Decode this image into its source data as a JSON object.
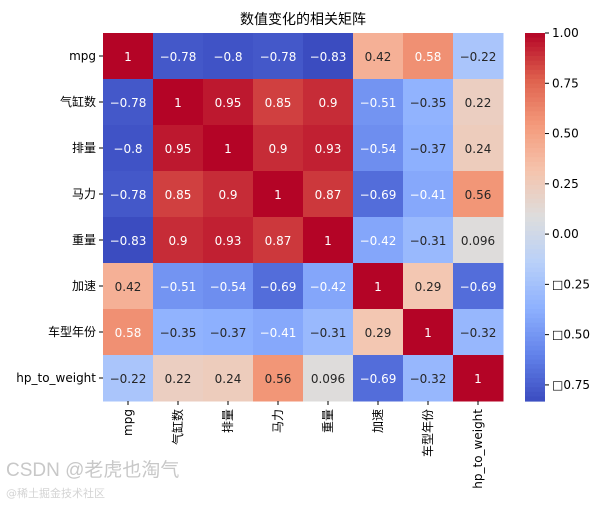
{
  "chart_data": {
    "type": "heatmap",
    "title": "数值变化的相关矩阵",
    "labels": [
      "mpg",
      "气缸数",
      "排量",
      "马力",
      "重量",
      "加速",
      "车型年份",
      "hp_to_weight"
    ],
    "matrix": [
      [
        1,
        -0.78,
        -0.8,
        -0.78,
        -0.83,
        0.42,
        0.58,
        -0.22
      ],
      [
        -0.78,
        1,
        0.95,
        0.85,
        0.9,
        -0.51,
        -0.35,
        0.22
      ],
      [
        -0.8,
        0.95,
        1,
        0.9,
        0.93,
        -0.54,
        -0.37,
        0.24
      ],
      [
        -0.78,
        0.85,
        0.9,
        1,
        0.87,
        -0.69,
        -0.41,
        0.56
      ],
      [
        -0.83,
        0.9,
        0.93,
        0.87,
        1,
        -0.42,
        -0.31,
        0.096
      ],
      [
        0.42,
        -0.51,
        -0.54,
        -0.69,
        -0.42,
        1,
        0.29,
        -0.69
      ],
      [
        0.58,
        -0.35,
        -0.37,
        -0.41,
        -0.31,
        0.29,
        1,
        -0.32
      ],
      [
        -0.22,
        0.22,
        0.24,
        0.56,
        0.096,
        -0.69,
        -0.32,
        1
      ]
    ],
    "annotations": [
      [
        "1",
        "−0.78",
        "−0.8",
        "−0.78",
        "−0.83",
        "0.42",
        "0.58",
        "−0.22"
      ],
      [
        "−0.78",
        "1",
        "0.95",
        "0.85",
        "0.9",
        "−0.51",
        "−0.35",
        "0.22"
      ],
      [
        "−0.8",
        "0.95",
        "1",
        "0.9",
        "0.93",
        "−0.54",
        "−0.37",
        "0.24"
      ],
      [
        "−0.78",
        "0.85",
        "0.9",
        "1",
        "0.87",
        "−0.69",
        "−0.41",
        "0.56"
      ],
      [
        "−0.83",
        "0.9",
        "0.93",
        "0.87",
        "1",
        "−0.42",
        "−0.31",
        "0.096"
      ],
      [
        "0.42",
        "−0.51",
        "−0.54",
        "−0.69",
        "−0.42",
        "1",
        "0.29",
        "−0.69"
      ],
      [
        "0.58",
        "−0.35",
        "−0.37",
        "−0.41",
        "−0.31",
        "0.29",
        "1",
        "−0.32"
      ],
      [
        "−0.22",
        "0.22",
        "0.24",
        "0.56",
        "0.096",
        "−0.69",
        "−0.32",
        "1"
      ]
    ],
    "colormap": "coolwarm",
    "vrange": [
      -0.83,
      1.0
    ],
    "colorbar": {
      "ticks": [
        1.0,
        0.75,
        0.5,
        0.25,
        0.0,
        -0.25,
        -0.5,
        -0.75
      ],
      "tick_labels": [
        "1.00",
        "0.75",
        "0.50",
        "0.25",
        "0.00",
        "□0.25",
        "□0.50",
        "□0.75"
      ]
    },
    "colormap_stops": [
      "#3b4cc0",
      "#6282ea",
      "#8db0fe",
      "#b8d0f9",
      "#dddddd",
      "#f5c4ad",
      "#f49a7b",
      "#de604d",
      "#b40426"
    ]
  },
  "watermark": {
    "text": "CSDN @老虎也淘气",
    "sub": "@稀土掘金技术社区"
  }
}
